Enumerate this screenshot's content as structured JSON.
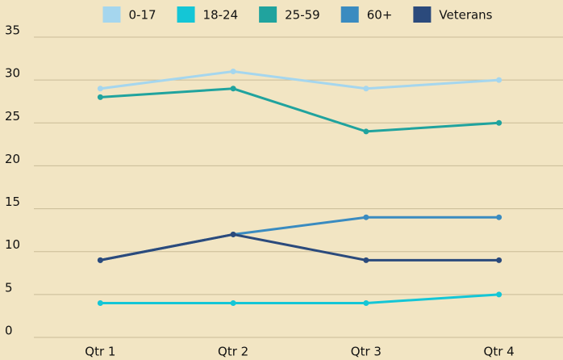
{
  "chart_data": {
    "type": "line",
    "categories": [
      "Qtr 1",
      "Qtr 2",
      "Qtr 3",
      "Qtr 4"
    ],
    "series": [
      {
        "name": "0-17",
        "color": "#a5d6ee",
        "values": [
          29,
          31,
          29,
          30
        ]
      },
      {
        "name": "18-24",
        "color": "#14c6d6",
        "values": [
          4,
          4,
          4,
          5
        ]
      },
      {
        "name": "25-59",
        "color": "#20a39e",
        "values": [
          28,
          29,
          24,
          25
        ]
      },
      {
        "name": "60+",
        "color": "#3a8bc0",
        "values": [
          9,
          12,
          14,
          14
        ]
      },
      {
        "name": "Veterans",
        "color": "#2b4a7c",
        "values": [
          9,
          12,
          9,
          9
        ]
      }
    ],
    "ylim": [
      0,
      35
    ],
    "yticks": [
      0,
      5,
      10,
      15,
      20,
      25,
      30,
      35
    ],
    "grid": true,
    "legend": "top"
  }
}
